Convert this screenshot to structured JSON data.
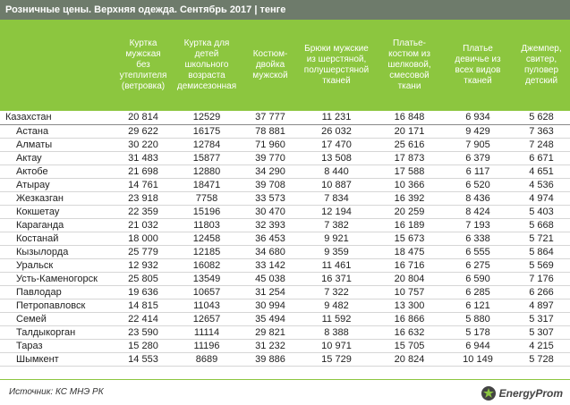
{
  "header": {
    "title": "Розничные цены. Верхняя одежда. Сентябрь 2017 | тенге"
  },
  "table": {
    "columns": [
      "Куртка\nмужская\nбез\nутеплителя\n(ветровка)",
      "Куртка для\nдетей\nшкольного\nвозраста\nдемисезонная",
      "Костюм-\nдвойка\nмужской",
      "Брюки мужские\nиз шерстяной,\nполушерстяной\nтканей",
      "Платье-\nкостюм из\nшелковой,\nсмесовой\nткани",
      "Платье\nдевичье из\nвсех видов\nтканей",
      "Джемпер,\nсвитер,\nпуловер\nдетский"
    ],
    "rows": [
      [
        "Казахстан",
        "20 814",
        "12529",
        "37 777",
        "11 231",
        "16 848",
        "6 934",
        "5 628"
      ],
      [
        "Астана",
        "29 622",
        "16175",
        "78 881",
        "26 032",
        "20 171",
        "9 429",
        "7 363"
      ],
      [
        "Алматы",
        "30 220",
        "12784",
        "71 960",
        "17 470",
        "25 616",
        "7 905",
        "7 248"
      ],
      [
        "Актау",
        "31 483",
        "15877",
        "39 770",
        "13 508",
        "17 873",
        "6 379",
        "6 671"
      ],
      [
        "Актобе",
        "21 698",
        "12880",
        "34 290",
        "8 440",
        "17 588",
        "6 117",
        "4 651"
      ],
      [
        "Атырау",
        "14 761",
        "18471",
        "39 708",
        "10 887",
        "10 366",
        "6 520",
        "4 536"
      ],
      [
        "Жезказган",
        "23 918",
        "7758",
        "33 573",
        "7 834",
        "16 392",
        "8 436",
        "4 974"
      ],
      [
        "Кокшетау",
        "22 359",
        "15196",
        "30 470",
        "12 194",
        "20 259",
        "8 424",
        "5 403"
      ],
      [
        "Караганда",
        "21 032",
        "11803",
        "32 393",
        "7 382",
        "16 189",
        "7 193",
        "5 668"
      ],
      [
        "Костанай",
        "18 000",
        "12458",
        "36 453",
        "9 921",
        "15 673",
        "6 338",
        "5 721"
      ],
      [
        "Кызылорда",
        "25 779",
        "12185",
        "34 680",
        "9 359",
        "18 475",
        "6 555",
        "5 864"
      ],
      [
        "Уральск",
        "12 932",
        "16082",
        "33 142",
        "11 461",
        "16 716",
        "6 275",
        "5 569"
      ],
      [
        "Усть-Каменогорск",
        "25 805",
        "13549",
        "45 038",
        "16 371",
        "20 804",
        "6 590",
        "7 176"
      ],
      [
        "Павлодар",
        "19 636",
        "10657",
        "31 254",
        "7 322",
        "10 757",
        "6 285",
        "6 266"
      ],
      [
        "Петропавловск",
        "14 815",
        "11043",
        "30 994",
        "9 482",
        "13 300",
        "6 121",
        "4 897"
      ],
      [
        "Семей",
        "22 414",
        "12657",
        "35 494",
        "11 592",
        "16 866",
        "5 880",
        "5 317"
      ],
      [
        "Талдыкорган",
        "23 590",
        "11114",
        "29 821",
        "8 388",
        "16 632",
        "5 178",
        "5 307"
      ],
      [
        "Тараз",
        "15 280",
        "11196",
        "31 232",
        "10 971",
        "15 705",
        "6 944",
        "4 215"
      ],
      [
        "Шымкент",
        "14 553",
        "8689",
        "39 886",
        "15 729",
        "20 824",
        "10 149",
        "5 728"
      ]
    ]
  },
  "footer": {
    "source": "Источник: КС МНЭ РК",
    "logo": "EnergyProm"
  }
}
